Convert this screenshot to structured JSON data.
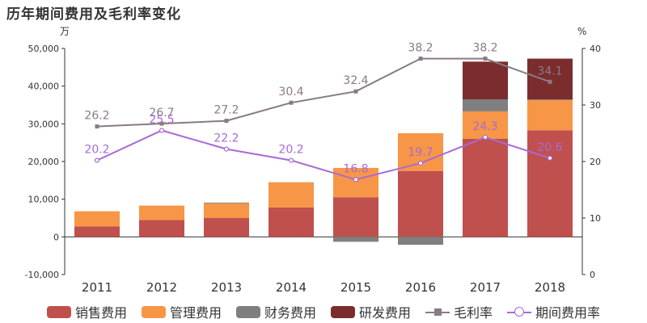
{
  "title": "历年期间费用及毛利率变化",
  "left_axis_unit": "万",
  "right_axis_unit": "%",
  "chart_data": {
    "type": "bar",
    "stacked": true,
    "categories": [
      "2011",
      "2012",
      "2013",
      "2014",
      "2015",
      "2016",
      "2017",
      "2018"
    ],
    "series": [
      {
        "name": "销售费用",
        "type": "bar",
        "axis": "left",
        "color": "#c0504d",
        "values": [
          2800,
          4500,
          5000,
          7800,
          10500,
          17500,
          26000,
          28300
        ]
      },
      {
        "name": "管理费用",
        "type": "bar",
        "axis": "left",
        "color": "#f79646",
        "values": [
          4000,
          3800,
          3900,
          6700,
          7800,
          10000,
          7300,
          8000
        ]
      },
      {
        "name": "财务费用",
        "type": "bar",
        "axis": "left",
        "color": "#7f7f7f",
        "values": [
          0,
          0,
          200,
          0,
          -1300,
          -2100,
          3200,
          200
        ]
      },
      {
        "name": "研发费用",
        "type": "bar",
        "axis": "left",
        "color": "#7b2c2c",
        "values": [
          0,
          0,
          0,
          0,
          0,
          0,
          10000,
          10800
        ]
      },
      {
        "name": "毛利率",
        "type": "line",
        "axis": "right",
        "color": "#8a7a86",
        "marker": "square",
        "values": [
          26.2,
          26.7,
          27.2,
          30.4,
          32.4,
          38.2,
          38.2,
          34.1
        ],
        "labels": [
          "26.2",
          "26.7",
          "27.2",
          "30.4",
          "32.4",
          "38.2",
          "38.2",
          "34.1"
        ]
      },
      {
        "name": "期间费用率",
        "type": "line",
        "axis": "right",
        "color": "#a86ad6",
        "marker": "circle",
        "values": [
          20.2,
          25.5,
          22.2,
          20.2,
          16.8,
          19.7,
          24.3,
          20.6
        ],
        "labels": [
          "20.2",
          "25.5",
          "22.2",
          "20.2",
          "16.8",
          "19.7",
          "24.3",
          "20.6"
        ]
      }
    ],
    "left_axis": {
      "min": -10000,
      "max": 50000,
      "ticks": [
        "-10,000",
        "0",
        "10,000",
        "20,000",
        "30,000",
        "40,000",
        "50,000"
      ],
      "tick_values": [
        -10000,
        0,
        10000,
        20000,
        30000,
        40000,
        50000
      ]
    },
    "right_axis": {
      "min": 0,
      "max": 40,
      "ticks": [
        "0",
        "10",
        "20",
        "30",
        "40"
      ],
      "tick_values": [
        0,
        10,
        20,
        30,
        40
      ]
    },
    "grid": false,
    "legend": "bottom"
  }
}
